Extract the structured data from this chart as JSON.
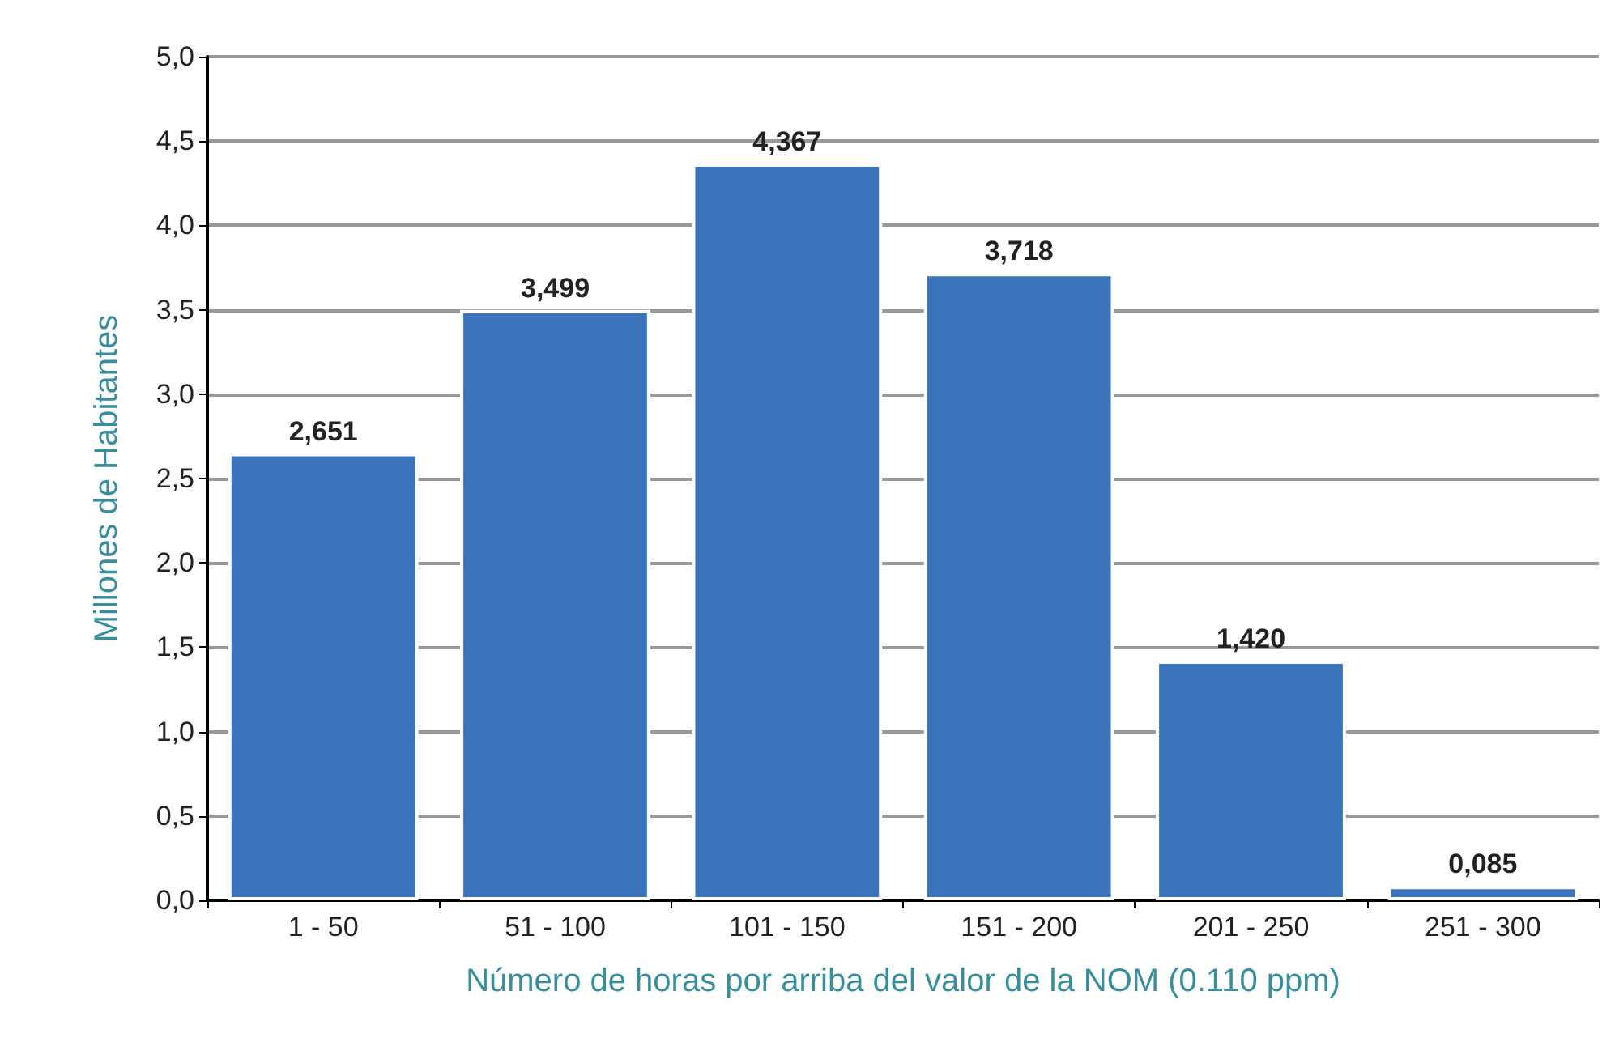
{
  "chart_data": {
    "type": "bar",
    "xlabel": "Número de horas por arriba del valor de la NOM (0.110 ppm)",
    "ylabel": "Millones de Habitantes",
    "categories": [
      "1 - 50",
      "51 - 100",
      "101 - 150",
      "151 - 200",
      "201 - 250",
      "251 - 300"
    ],
    "values": [
      2.651,
      3.499,
      4.367,
      3.718,
      1.42,
      0.085
    ],
    "value_labels": [
      "2,651",
      "3,499",
      "4,367",
      "3,718",
      "1,420",
      "0,085"
    ],
    "color": "#3b74ba",
    "ylim": [
      0,
      5
    ],
    "yticks": [
      {
        "value": 0,
        "label": "0,0"
      },
      {
        "value": 0.5,
        "label": "0,5"
      },
      {
        "value": 1,
        "label": "1,0"
      },
      {
        "value": 1.5,
        "label": "1,5"
      },
      {
        "value": 2,
        "label": "2,0"
      },
      {
        "value": 2.5,
        "label": "2,5"
      },
      {
        "value": 3,
        "label": "3,0"
      },
      {
        "value": 3.5,
        "label": "3,5"
      },
      {
        "value": 4,
        "label": "4,0"
      },
      {
        "value": 4.5,
        "label": "4,5"
      },
      {
        "value": 5,
        "label": "5,0"
      }
    ],
    "grid": "y"
  }
}
